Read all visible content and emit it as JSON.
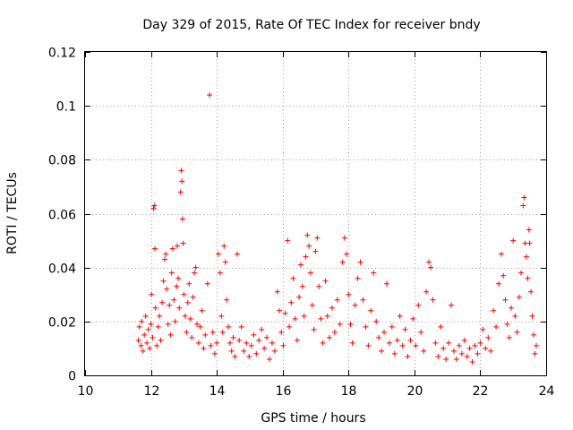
{
  "chart_data": {
    "type": "scatter",
    "title": "Day 329 of 2015, Rate Of TEC Index for receiver bndy",
    "xlabel": "GPS time / hours",
    "ylabel": "ROTI / TECUs",
    "xlim": [
      10,
      24
    ],
    "ylim": [
      0,
      0.12
    ],
    "xticks": [
      10,
      12,
      14,
      16,
      18,
      20,
      22,
      24
    ],
    "xtick_labels": [
      "10",
      "12",
      "14",
      "16",
      "18",
      "20",
      "22",
      "24"
    ],
    "yticks": [
      0,
      0.02,
      0.04,
      0.06,
      0.08,
      0.1,
      0.12
    ],
    "ytick_labels": [
      "0",
      "0.02",
      "0.04",
      "0.06",
      "0.08",
      "0.1",
      "0.12"
    ],
    "grid": true,
    "marker": "+",
    "color": "#ff0000",
    "series": [
      {
        "name": "ROTI",
        "points": [
          [
            11.62,
            0.013
          ],
          [
            11.65,
            0.018
          ],
          [
            11.7,
            0.011
          ],
          [
            11.72,
            0.02
          ],
          [
            11.76,
            0.009
          ],
          [
            11.8,
            0.015
          ],
          [
            11.84,
            0.022
          ],
          [
            11.88,
            0.012
          ],
          [
            11.92,
            0.017
          ],
          [
            11.96,
            0.01
          ],
          [
            12.0,
            0.019
          ],
          [
            12.02,
            0.03
          ],
          [
            12.05,
            0.014
          ],
          [
            12.08,
            0.062
          ],
          [
            12.1,
            0.063
          ],
          [
            12.12,
            0.047
          ],
          [
            12.14,
            0.025
          ],
          [
            12.18,
            0.011
          ],
          [
            12.22,
            0.018
          ],
          [
            12.26,
            0.022
          ],
          [
            12.3,
            0.013
          ],
          [
            12.34,
            0.027
          ],
          [
            12.38,
            0.035
          ],
          [
            12.42,
            0.043
          ],
          [
            12.45,
            0.045
          ],
          [
            12.48,
            0.032
          ],
          [
            12.52,
            0.019
          ],
          [
            12.56,
            0.026
          ],
          [
            12.6,
            0.015
          ],
          [
            12.63,
            0.038
          ],
          [
            12.66,
            0.047
          ],
          [
            12.7,
            0.028
          ],
          [
            12.74,
            0.02
          ],
          [
            12.78,
            0.033
          ],
          [
            12.8,
            0.048
          ],
          [
            12.83,
            0.036
          ],
          [
            12.86,
            0.025
          ],
          [
            12.9,
            0.068
          ],
          [
            12.92,
            0.076
          ],
          [
            12.94,
            0.072
          ],
          [
            12.96,
            0.058
          ],
          [
            12.98,
            0.049
          ],
          [
            13.0,
            0.03
          ],
          [
            13.04,
            0.022
          ],
          [
            13.08,
            0.016
          ],
          [
            13.12,
            0.027
          ],
          [
            13.16,
            0.034
          ],
          [
            13.2,
            0.021
          ],
          [
            13.24,
            0.014
          ],
          [
            13.28,
            0.029
          ],
          [
            13.32,
            0.038
          ],
          [
            13.36,
            0.04
          ],
          [
            13.4,
            0.019
          ],
          [
            13.45,
            0.012
          ],
          [
            13.5,
            0.018
          ],
          [
            13.55,
            0.024
          ],
          [
            13.6,
            0.01
          ],
          [
            13.65,
            0.015
          ],
          [
            13.72,
            0.034
          ],
          [
            13.78,
            0.104
          ],
          [
            13.82,
            0.011
          ],
          [
            13.88,
            0.016
          ],
          [
            13.94,
            0.008
          ],
          [
            14.0,
            0.012
          ],
          [
            14.05,
            0.045
          ],
          [
            14.1,
            0.038
          ],
          [
            14.14,
            0.022
          ],
          [
            14.18,
            0.016
          ],
          [
            14.22,
            0.048
          ],
          [
            14.26,
            0.042
          ],
          [
            14.3,
            0.028
          ],
          [
            14.35,
            0.018
          ],
          [
            14.4,
            0.012
          ],
          [
            14.45,
            0.009
          ],
          [
            14.5,
            0.014
          ],
          [
            14.55,
            0.007
          ],
          [
            14.62,
            0.045
          ],
          [
            14.68,
            0.013
          ],
          [
            14.75,
            0.018
          ],
          [
            14.82,
            0.009
          ],
          [
            14.9,
            0.012
          ],
          [
            14.98,
            0.007
          ],
          [
            15.05,
            0.011
          ],
          [
            15.12,
            0.015
          ],
          [
            15.2,
            0.008
          ],
          [
            15.28,
            0.013
          ],
          [
            15.36,
            0.017
          ],
          [
            15.44,
            0.01
          ],
          [
            15.52,
            0.014
          ],
          [
            15.6,
            0.006
          ],
          [
            15.68,
            0.012
          ],
          [
            15.76,
            0.009
          ],
          [
            15.84,
            0.031
          ],
          [
            15.9,
            0.024
          ],
          [
            15.96,
            0.016
          ],
          [
            16.02,
            0.011
          ],
          [
            16.08,
            0.023
          ],
          [
            16.15,
            0.05
          ],
          [
            16.2,
            0.018
          ],
          [
            16.26,
            0.027
          ],
          [
            16.32,
            0.036
          ],
          [
            16.38,
            0.021
          ],
          [
            16.44,
            0.013
          ],
          [
            16.5,
            0.029
          ],
          [
            16.55,
            0.041
          ],
          [
            16.6,
            0.033
          ],
          [
            16.65,
            0.022
          ],
          [
            16.7,
            0.044
          ],
          [
            16.75,
            0.052
          ],
          [
            16.8,
            0.048
          ],
          [
            16.85,
            0.038
          ],
          [
            16.9,
            0.026
          ],
          [
            16.95,
            0.017
          ],
          [
            17.0,
            0.046
          ],
          [
            17.05,
            0.051
          ],
          [
            17.1,
            0.033
          ],
          [
            17.16,
            0.021
          ],
          [
            17.22,
            0.012
          ],
          [
            17.3,
            0.035
          ],
          [
            17.36,
            0.022
          ],
          [
            17.42,
            0.014
          ],
          [
            17.5,
            0.025
          ],
          [
            17.58,
            0.016
          ],
          [
            17.66,
            0.028
          ],
          [
            17.74,
            0.019
          ],
          [
            17.82,
            0.042
          ],
          [
            17.88,
            0.051
          ],
          [
            17.94,
            0.045
          ],
          [
            18.0,
            0.03
          ],
          [
            18.06,
            0.019
          ],
          [
            18.12,
            0.012
          ],
          [
            18.2,
            0.026
          ],
          [
            18.28,
            0.036
          ],
          [
            18.36,
            0.042
          ],
          [
            18.44,
            0.028
          ],
          [
            18.52,
            0.018
          ],
          [
            18.6,
            0.011
          ],
          [
            18.68,
            0.024
          ],
          [
            18.76,
            0.038
          ],
          [
            18.84,
            0.02
          ],
          [
            18.92,
            0.014
          ],
          [
            19.0,
            0.009
          ],
          [
            19.08,
            0.016
          ],
          [
            19.16,
            0.034
          ],
          [
            19.24,
            0.012
          ],
          [
            19.32,
            0.018
          ],
          [
            19.4,
            0.008
          ],
          [
            19.48,
            0.013
          ],
          [
            19.56,
            0.022
          ],
          [
            19.64,
            0.011
          ],
          [
            19.72,
            0.017
          ],
          [
            19.8,
            0.007
          ],
          [
            19.88,
            0.013
          ],
          [
            19.96,
            0.021
          ],
          [
            20.04,
            0.011
          ],
          [
            20.12,
            0.026
          ],
          [
            20.2,
            0.016
          ],
          [
            20.28,
            0.009
          ],
          [
            20.36,
            0.031
          ],
          [
            20.44,
            0.042
          ],
          [
            20.5,
            0.04
          ],
          [
            20.56,
            0.028
          ],
          [
            20.64,
            0.012
          ],
          [
            20.72,
            0.007
          ],
          [
            20.8,
            0.018
          ],
          [
            20.88,
            0.01
          ],
          [
            20.96,
            0.006
          ],
          [
            21.04,
            0.012
          ],
          [
            21.12,
            0.026
          ],
          [
            21.2,
            0.009
          ],
          [
            21.28,
            0.006
          ],
          [
            21.36,
            0.011
          ],
          [
            21.44,
            0.008
          ],
          [
            21.52,
            0.013
          ],
          [
            21.6,
            0.007
          ],
          [
            21.68,
            0.01
          ],
          [
            21.76,
            0.005
          ],
          [
            21.84,
            0.011
          ],
          [
            21.92,
            0.008
          ],
          [
            22.0,
            0.012
          ],
          [
            22.08,
            0.017
          ],
          [
            22.16,
            0.01
          ],
          [
            22.24,
            0.014
          ],
          [
            22.32,
            0.009
          ],
          [
            22.4,
            0.024
          ],
          [
            22.48,
            0.018
          ],
          [
            22.56,
            0.034
          ],
          [
            22.64,
            0.045
          ],
          [
            22.7,
            0.037
          ],
          [
            22.76,
            0.028
          ],
          [
            22.82,
            0.019
          ],
          [
            22.88,
            0.014
          ],
          [
            22.94,
            0.025
          ],
          [
            23.0,
            0.05
          ],
          [
            23.06,
            0.022
          ],
          [
            23.12,
            0.016
          ],
          [
            23.18,
            0.029
          ],
          [
            23.24,
            0.038
          ],
          [
            23.3,
            0.063
          ],
          [
            23.33,
            0.066
          ],
          [
            23.36,
            0.049
          ],
          [
            23.4,
            0.044
          ],
          [
            23.44,
            0.036
          ],
          [
            23.48,
            0.054
          ],
          [
            23.5,
            0.049
          ],
          [
            23.54,
            0.031
          ],
          [
            23.58,
            0.022
          ],
          [
            23.62,
            0.015
          ],
          [
            23.66,
            0.008
          ],
          [
            23.7,
            0.011
          ]
        ]
      }
    ]
  }
}
